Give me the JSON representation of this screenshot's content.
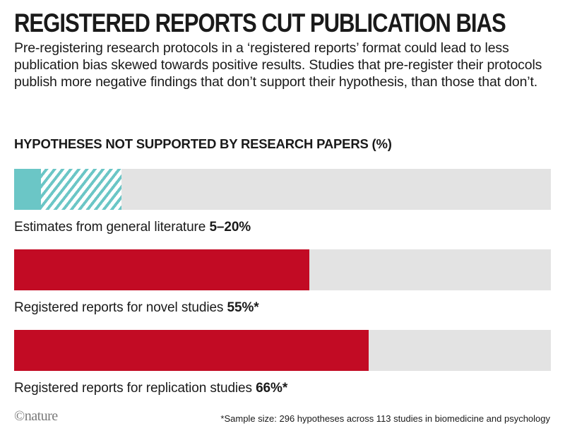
{
  "title": "REGISTERED REPORTS CUT PUBLICATION BIAS",
  "subtitle": "Pre-registering research protocols in a ‘registered reports’ format could lead to less publication bias skewed towards positive results. Studies that pre-register their protocols publish more negative findings that don’t support their hypothesis, than those that don’t.",
  "footnote": "*Sample size: 296 hypotheses across 113 studies in biomedicine and psychology",
  "logo": "©nature",
  "chart_data": {
    "type": "bar",
    "orientation": "horizontal",
    "title": "HYPOTHESES NOT SUPPORTED BY RESEARCH PAPERS (%)",
    "xlim": [
      0,
      100
    ],
    "grid": false,
    "bars": [
      {
        "label": "Estimates from general literature",
        "value_text": "5–20%",
        "low": 5,
        "high": 20,
        "color": "#6bc6c6",
        "style": "range"
      },
      {
        "label": "Registered reports for novel studies",
        "value_text": "55%*",
        "value": 55,
        "color": "#c20b24",
        "style": "solid"
      },
      {
        "label": "Registered reports for replication studies",
        "value_text": "66%*",
        "value": 66,
        "color": "#c20b24",
        "style": "solid"
      }
    ],
    "track_color": "#e3e3e3"
  }
}
